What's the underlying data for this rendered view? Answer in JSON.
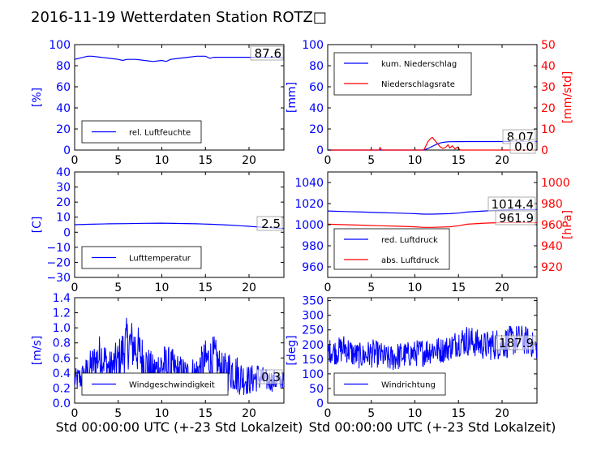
{
  "title": "2016-11-19 Wetterdaten Station ROTZ□",
  "xlabel": "Std 00:00:00 UTC (+-23 Std Lokalzeit)",
  "colors": {
    "blue": "#0000ff",
    "red": "#ff0000",
    "black": "#000000"
  },
  "chart_data": [
    {
      "type": "line",
      "xlim": [
        0,
        24
      ],
      "ylim": [
        0,
        100
      ],
      "xticks": [
        0,
        5,
        10,
        15,
        20
      ],
      "yticks": [
        0,
        20,
        40,
        60,
        80,
        100
      ],
      "ylabel": "[%]",
      "series": [
        {
          "name": "rel. Luftfeuchte",
          "color": "#0000ff",
          "x": [
            0,
            0.5,
            1,
            1.5,
            2,
            3,
            4,
            5,
            5.5,
            6,
            7,
            8,
            9,
            10,
            10.5,
            11,
            12,
            13,
            14,
            15,
            15.5,
            16,
            17,
            18,
            19,
            20,
            21,
            22,
            23,
            24
          ],
          "values": [
            86,
            87,
            88,
            89,
            89,
            88,
            87,
            86,
            85,
            86,
            86,
            85,
            84,
            85,
            84,
            86,
            87,
            88,
            89,
            89,
            87,
            88,
            88,
            88,
            88,
            88,
            88,
            88,
            87.8,
            87.6
          ]
        }
      ],
      "annotations": [
        "87.6"
      ],
      "legend_position": "lower-left"
    },
    {
      "type": "line",
      "xlim": [
        0,
        24
      ],
      "ylim": [
        0,
        100
      ],
      "y2lim": [
        0,
        50
      ],
      "xticks": [
        0,
        5,
        10,
        15,
        20
      ],
      "yticks": [
        0,
        20,
        40,
        60,
        80,
        100
      ],
      "y2ticks": [
        0,
        10,
        20,
        30,
        40,
        50
      ],
      "ylabel": "[mm]",
      "y2label": "[mm/std]",
      "series": [
        {
          "name": "kum. Niederschlag",
          "color": "#0000ff",
          "axis": "left",
          "x": [
            0,
            11,
            11.5,
            12,
            12.5,
            13,
            13.5,
            14,
            15,
            16,
            20,
            24
          ],
          "values": [
            0,
            0,
            1.5,
            3.5,
            5.5,
            7,
            7.6,
            7.9,
            8.0,
            8.07,
            8.07,
            8.07
          ]
        },
        {
          "name": "Niederschlagsrate",
          "color": "#ff0000",
          "axis": "right",
          "x": [
            0,
            5.9,
            6.0,
            6.1,
            6.2,
            11.0,
            11.2,
            11.5,
            11.8,
            12.0,
            12.3,
            12.6,
            12.9,
            13.2,
            13.5,
            13.8,
            14.0,
            14.3,
            14.6,
            14.9,
            15.2,
            24
          ],
          "values": [
            0,
            0,
            1.2,
            0.5,
            0,
            0,
            1.5,
            4,
            5.5,
            6,
            4.5,
            3,
            1.5,
            0.8,
            1.2,
            2.5,
            1.0,
            2.0,
            0.5,
            1.5,
            0,
            0
          ]
        }
      ],
      "annotations": [
        "8.07",
        "0.0"
      ],
      "legend_position": "upper-left"
    },
    {
      "type": "line",
      "xlim": [
        0,
        24
      ],
      "ylim": [
        -30,
        40
      ],
      "xticks": [
        0,
        5,
        10,
        15,
        20
      ],
      "yticks": [
        -30,
        -20,
        -10,
        0,
        10,
        20,
        30,
        40
      ],
      "ylabel": "[C]",
      "series": [
        {
          "name": "Lufttemperatur",
          "color": "#0000ff",
          "x": [
            0,
            2,
            4,
            6,
            8,
            10,
            12,
            14,
            16,
            18,
            19,
            20,
            21,
            22,
            23,
            24
          ],
          "values": [
            5,
            5.3,
            5.6,
            5.7,
            5.9,
            6.0,
            5.8,
            5.6,
            5.2,
            4.7,
            4.3,
            3.9,
            3.5,
            3.2,
            2.8,
            2.5
          ]
        }
      ],
      "annotations": [
        "2.5"
      ],
      "legend_position": "lower-left"
    },
    {
      "type": "line",
      "xlim": [
        0,
        24
      ],
      "ylim": [
        950,
        1050
      ],
      "y2lim": [
        910,
        1010
      ],
      "xticks": [
        0,
        5,
        10,
        15,
        20
      ],
      "yticks": [
        960,
        980,
        1000,
        1020,
        1040
      ],
      "y2ticks": [
        920,
        940,
        960,
        980,
        1000
      ],
      "ylabel": "",
      "y2label": "[hPa]",
      "series": [
        {
          "name": "red. Luftdruck",
          "color": "#0000ff",
          "axis": "left",
          "x": [
            0,
            2,
            4,
            6,
            8,
            10,
            11,
            12,
            14,
            15,
            16,
            18,
            20,
            22,
            24
          ],
          "values": [
            1013,
            1012.5,
            1012,
            1011.5,
            1011,
            1010.5,
            1010,
            1010,
            1010.5,
            1011,
            1012,
            1013,
            1014,
            1014.3,
            1014.4
          ]
        },
        {
          "name": "abs. Luftdruck",
          "color": "#ff0000",
          "axis": "right",
          "x": [
            0,
            2,
            4,
            6,
            8,
            10,
            11,
            12,
            14,
            15,
            16,
            18,
            20,
            22,
            24
          ],
          "values": [
            960.5,
            960,
            959.5,
            959,
            958.5,
            958,
            957.5,
            957.5,
            958,
            959,
            960.5,
            961.5,
            962,
            962,
            961.9
          ]
        }
      ],
      "annotations": [
        "1014.4",
        "961.9"
      ],
      "legend_position": "lower-left"
    },
    {
      "type": "line",
      "xlim": [
        0,
        24
      ],
      "ylim": [
        0,
        1.4
      ],
      "xticks": [
        0,
        5,
        10,
        15,
        20
      ],
      "yticks": [
        0.0,
        0.2,
        0.4,
        0.6,
        0.8,
        1.0,
        1.2,
        1.4
      ],
      "ylabel": "[m/s]",
      "series": [
        {
          "name": "Windgeschwindigkeit",
          "color": "#0000ff",
          "noise": true,
          "x": [
            0,
            1,
            2,
            3,
            4,
            5,
            6,
            7,
            8,
            9,
            10,
            11,
            12,
            13,
            14,
            15,
            16,
            17,
            18,
            19,
            20,
            21,
            22,
            23,
            24
          ],
          "values": [
            0.3,
            0.35,
            0.5,
            0.65,
            0.45,
            0.55,
            0.8,
            0.75,
            0.55,
            0.4,
            0.5,
            0.45,
            0.4,
            0.35,
            0.4,
            0.55,
            0.6,
            0.4,
            0.45,
            0.35,
            0.3,
            0.35,
            0.3,
            0.3,
            0.3
          ],
          "spread": [
            0.15,
            0.2,
            0.25,
            0.3,
            0.25,
            0.3,
            0.35,
            0.35,
            0.3,
            0.25,
            0.3,
            0.3,
            0.25,
            0.25,
            0.25,
            0.3,
            0.3,
            0.25,
            0.3,
            0.25,
            0.2,
            0.2,
            0.15,
            0.15,
            0.1
          ]
        }
      ],
      "annotations": [
        "0.3"
      ],
      "legend_position": "lower-center"
    },
    {
      "type": "line",
      "xlim": [
        0,
        24
      ],
      "ylim": [
        0,
        360
      ],
      "xticks": [
        0,
        5,
        10,
        15,
        20
      ],
      "yticks": [
        0,
        50,
        100,
        150,
        200,
        250,
        300,
        350
      ],
      "ylabel": "[deg]",
      "series": [
        {
          "name": "Windrichtung",
          "color": "#0000ff",
          "noise": true,
          "x": [
            0,
            1,
            2,
            3,
            4,
            5,
            6,
            7,
            8,
            9,
            10,
            11,
            12,
            13,
            14,
            15,
            16,
            17,
            18,
            19,
            20,
            21,
            22,
            23,
            24
          ],
          "values": [
            180,
            175,
            190,
            165,
            160,
            170,
            165,
            150,
            160,
            165,
            170,
            175,
            185,
            180,
            190,
            210,
            215,
            205,
            195,
            200,
            205,
            210,
            220,
            210,
            188
          ],
          "spread": [
            40,
            45,
            50,
            45,
            45,
            50,
            45,
            45,
            50,
            45,
            45,
            50,
            50,
            45,
            45,
            50,
            55,
            50,
            50,
            55,
            55,
            55,
            50,
            50,
            40
          ]
        }
      ],
      "annotations": [
        "187.9"
      ],
      "legend_position": "lower-left"
    }
  ]
}
